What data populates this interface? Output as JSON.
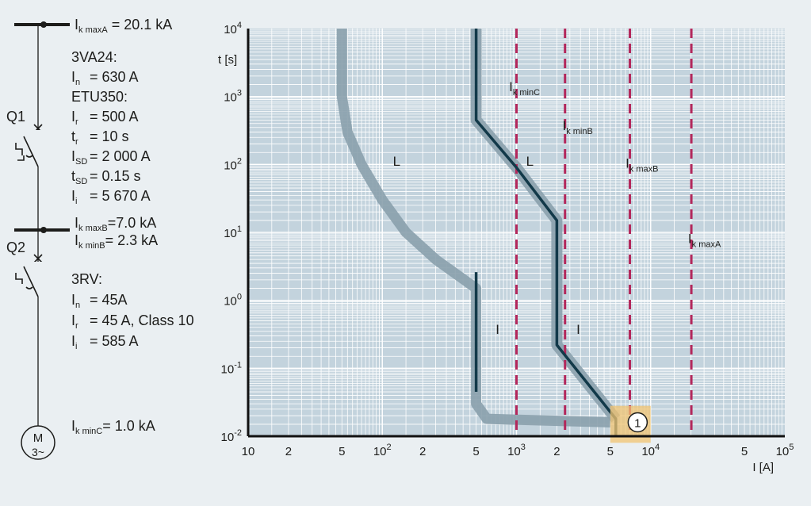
{
  "circuit": {
    "bus_a": {
      "label": "I",
      "sub": "k maxA",
      "value": " = 20.1 kA"
    },
    "q1": {
      "name": "Q1",
      "device": "3VA24:",
      "in": {
        "label": "I",
        "sub": "n",
        "value": "= 630 A"
      },
      "release": "ETU350:",
      "ir": {
        "label": "I",
        "sub": "r",
        "value": "= 500 A"
      },
      "tr": {
        "label": "t",
        "sub": "r",
        "value": "= 10 s"
      },
      "isd": {
        "label": "I",
        "sub": "SD",
        "value": "= 2 000 A"
      },
      "tsd": {
        "label": "t",
        "sub": "SD",
        "value": "= 0.15 s"
      },
      "ii": {
        "label": "I",
        "sub": "i",
        "value": "= 5 670 A"
      }
    },
    "bus_b": {
      "ikmax": {
        "label": "I",
        "sub": "k maxB",
        "value": "=7.0 kA"
      },
      "ikmin": {
        "label": "I",
        "sub": "k minB",
        "value": "= 2.3 kA"
      }
    },
    "q2": {
      "name": "Q2",
      "device": "3RV:",
      "in": {
        "label": "I",
        "sub": "n",
        "value": "= 45A"
      },
      "ir": {
        "label": "I",
        "sub": "r",
        "value": "= 45 A, Class 10"
      },
      "ii": {
        "label": "I",
        "sub": "i",
        "value": "= 585 A"
      }
    },
    "motor": {
      "ikmin": {
        "label": "I",
        "sub": "k minC",
        "value": "= 1.0 kA"
      },
      "symbol_top": "M",
      "symbol_bottom": "3~"
    }
  },
  "chart_data": {
    "type": "line",
    "xscale": "log",
    "yscale": "log",
    "xlim": [
      10,
      100000
    ],
    "ylim": [
      0.01,
      10000
    ],
    "xlabel": "I [A]",
    "ylabel": "t [s]",
    "x_major_ticks": [
      {
        "v": 10,
        "t": "10"
      },
      {
        "v": 20,
        "t": "2"
      },
      {
        "v": 50,
        "t": "5"
      },
      {
        "v": 100,
        "t": "10",
        "e": "2"
      },
      {
        "v": 200,
        "t": "2"
      },
      {
        "v": 500,
        "t": "5"
      },
      {
        "v": 1000,
        "t": "10",
        "e": "3"
      },
      {
        "v": 2000,
        "t": "2"
      },
      {
        "v": 5000,
        "t": "5"
      },
      {
        "v": 10000,
        "t": "10",
        "e": "4"
      },
      {
        "v": 50000,
        "t": "5"
      },
      {
        "v": 100000,
        "t": "10",
        "e": "5"
      }
    ],
    "y_major_ticks": [
      {
        "v": 0.01,
        "t": "10",
        "e": "-2"
      },
      {
        "v": 0.1,
        "t": "10",
        "e": "-1"
      },
      {
        "v": 1,
        "t": "10",
        "e": "0"
      },
      {
        "v": 10,
        "t": "10",
        "e": "1"
      },
      {
        "v": 100,
        "t": "10",
        "e": "2"
      },
      {
        "v": 1000,
        "t": "10",
        "e": "3"
      },
      {
        "v": 10000,
        "t": "10",
        "e": "4"
      }
    ],
    "bands": [
      {
        "points": [
          [
            50,
            10000
          ],
          [
            50,
            1000
          ],
          [
            55,
            300
          ],
          [
            70,
            100
          ],
          [
            100,
            30
          ],
          [
            150,
            10
          ],
          [
            250,
            4
          ],
          [
            500,
            1.5
          ],
          [
            500,
            0.03
          ],
          [
            600,
            0.018
          ],
          [
            5000,
            0.016
          ]
        ],
        "width": 13
      },
      {
        "points": [
          [
            500,
            10000
          ],
          [
            500,
            450
          ],
          [
            1000,
            90
          ],
          [
            2000,
            15
          ],
          [
            2000,
            0.22
          ],
          [
            5500,
            0.018
          ]
        ],
        "width": 14
      }
    ],
    "series": [
      {
        "points": [
          [
            500,
            10000
          ],
          [
            500,
            450
          ],
          [
            1000,
            90
          ],
          [
            2000,
            15
          ],
          [
            2000,
            0.22
          ],
          [
            5500,
            0.018
          ],
          [
            5500,
            0.01
          ]
        ],
        "width": 3.5
      },
      {
        "points": [
          [
            500,
            2.6
          ],
          [
            500,
            0.045
          ]
        ],
        "width": 3.5
      }
    ],
    "vlines": [
      {
        "x": 1000,
        "name": "I",
        "sub": "k minC",
        "lx": 880,
        "ly": 1200
      },
      {
        "x": 2300,
        "name": "I",
        "sub": "k minB",
        "lx": 2200,
        "ly": 320
      },
      {
        "x": 7000,
        "name": "I",
        "sub": "k maxB",
        "lx": 6500,
        "ly": 90
      },
      {
        "x": 20100,
        "name": "I",
        "sub": "k maxA",
        "lx": 19000,
        "ly": 7
      }
    ],
    "curve_labels": [
      {
        "text": "L",
        "x": 120,
        "y": 95
      },
      {
        "text": "L",
        "x": 1180,
        "y": 95
      },
      {
        "text": "I",
        "x": 700,
        "y": 0.32
      },
      {
        "text": "I",
        "x": 2800,
        "y": 0.32
      }
    ],
    "annotation": {
      "text": "1",
      "x": 8000,
      "y": 0.016,
      "box": [
        [
          5000,
          0.008
        ],
        [
          10000,
          0.028
        ]
      ]
    }
  },
  "colors": {
    "plot_bg": "#c3d3dd",
    "band": "#8aa0ac",
    "curve": "#123949",
    "dashed": "#b3275b",
    "highlight": "#f2c472",
    "axis": "#111111"
  }
}
